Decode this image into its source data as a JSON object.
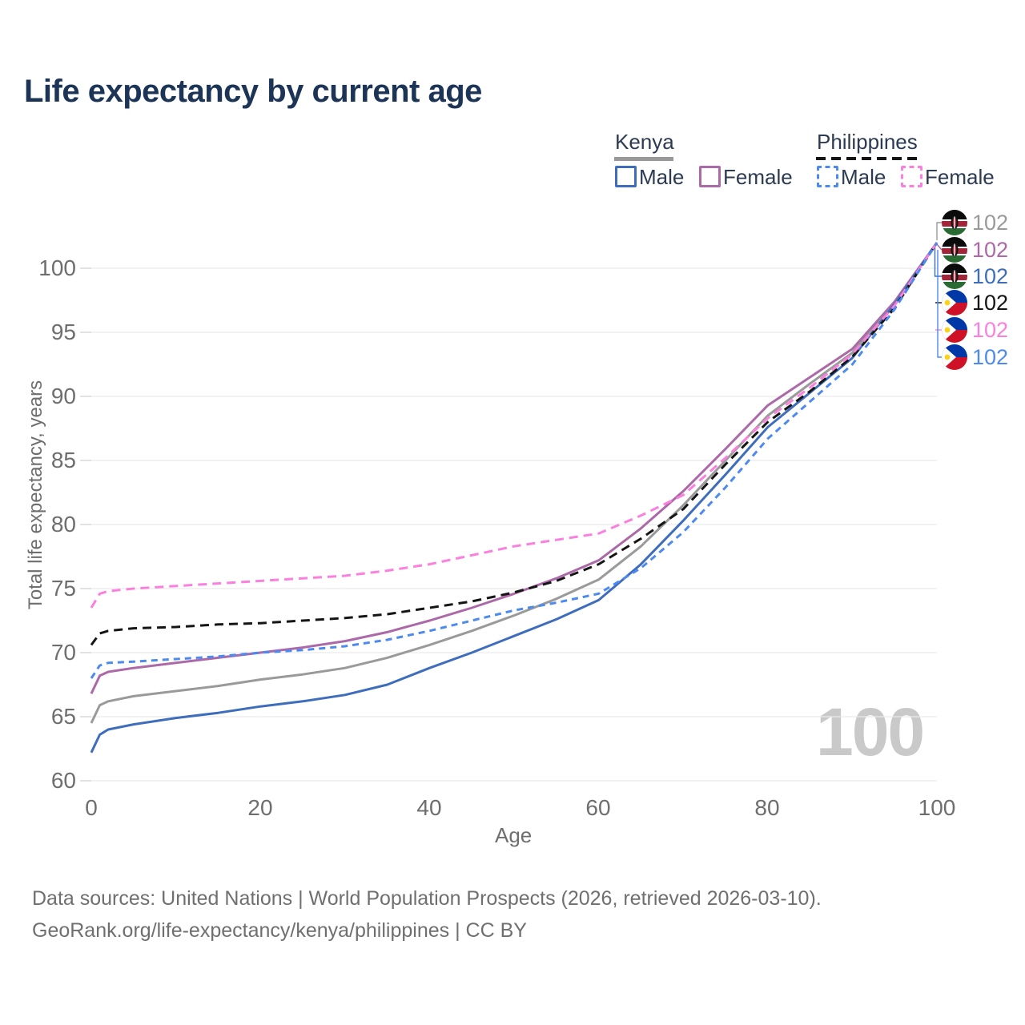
{
  "title": "Life expectancy by current age",
  "legend": {
    "groups": [
      {
        "label": "Kenya",
        "underline_color": "#999999",
        "underline_style": "solid",
        "items": [
          {
            "label": "Male",
            "color": "#3e6dbd",
            "dashed": false
          },
          {
            "label": "Female",
            "color": "#ac69a8",
            "dashed": false
          }
        ]
      },
      {
        "label": "Philippines",
        "underline_color": "#151515",
        "underline_style": "dashed",
        "items": [
          {
            "label": "Male",
            "color": "#4d8af0",
            "dashed": true
          },
          {
            "label": "Female",
            "color": "#fb80de",
            "dashed": true
          }
        ]
      }
    ]
  },
  "watermark": "100",
  "end_labels": {
    "rows": [
      {
        "flag": "kenya",
        "value": "102",
        "color": "#9a9a9a",
        "series": "Kenya All"
      },
      {
        "flag": "kenya",
        "value": "102",
        "color": "#ac69a8",
        "series": "Kenya Female"
      },
      {
        "flag": "kenya",
        "value": "102",
        "color": "#3e6dbd",
        "series": "Kenya Male"
      },
      {
        "flag": "philippines",
        "value": "102",
        "color": "#151515",
        "series": "Philippines All"
      },
      {
        "flag": "philippines",
        "value": "102",
        "color": "#fb80de",
        "series": "Philippines Female"
      },
      {
        "flag": "philippines",
        "value": "102",
        "color": "#4d8af0",
        "series": "Philippines Male"
      }
    ]
  },
  "footer": {
    "line1": "Data sources: United Nations | World Population Prospects (2026, retrieved 2026-03-10).",
    "line2": "GeoRank.org/life-expectancy/kenya/philippines | CC BY"
  },
  "chart_data": {
    "type": "line",
    "title": "Life expectancy by current age",
    "xlabel": "Age",
    "ylabel": "Total life expectancy, years",
    "xlim": [
      0,
      100
    ],
    "ylim": [
      60,
      102
    ],
    "xticks": [
      0,
      20,
      40,
      60,
      80,
      100
    ],
    "yticks": [
      60,
      65,
      70,
      75,
      80,
      85,
      90,
      95,
      100
    ],
    "grid": "horizontal",
    "legend_position": "top-right",
    "x": [
      0,
      1,
      2,
      5,
      10,
      15,
      20,
      25,
      30,
      35,
      40,
      45,
      50,
      55,
      60,
      65,
      70,
      75,
      80,
      85,
      90,
      95,
      100
    ],
    "series": [
      {
        "name": "Kenya All",
        "color": "#9a9a9a",
        "style": "solid",
        "dash": "",
        "values": [
          64.5,
          65.9,
          66.2,
          66.6,
          67.0,
          67.4,
          67.9,
          68.3,
          68.8,
          69.6,
          70.6,
          71.7,
          72.9,
          74.2,
          75.7,
          78.3,
          81.5,
          85.0,
          88.5,
          91.0,
          93.4,
          97.3,
          102
        ]
      },
      {
        "name": "Kenya Female",
        "color": "#ac69a8",
        "style": "solid",
        "dash": "",
        "values": [
          66.8,
          68.2,
          68.5,
          68.8,
          69.2,
          69.6,
          70.0,
          70.4,
          70.9,
          71.6,
          72.5,
          73.5,
          74.6,
          75.8,
          77.2,
          79.7,
          82.6,
          85.9,
          89.3,
          91.5,
          93.7,
          97.4,
          102
        ]
      },
      {
        "name": "Kenya Male",
        "color": "#3e6dbd",
        "style": "solid",
        "dash": "",
        "values": [
          62.2,
          63.6,
          64.0,
          64.4,
          64.9,
          65.3,
          65.8,
          66.2,
          66.7,
          67.5,
          68.8,
          70.0,
          71.3,
          72.6,
          74.1,
          76.9,
          80.3,
          83.9,
          87.6,
          90.3,
          93.0,
          97.2,
          102
        ]
      },
      {
        "name": "Philippines All",
        "color": "#151515",
        "style": "dashed",
        "dash": "11 7",
        "values": [
          70.6,
          71.5,
          71.7,
          71.9,
          72.0,
          72.2,
          72.3,
          72.5,
          72.7,
          73.0,
          73.5,
          74.0,
          74.7,
          75.6,
          76.9,
          78.9,
          81.2,
          84.7,
          88.0,
          90.4,
          93.1,
          96.9,
          102
        ]
      },
      {
        "name": "Philippines Female",
        "color": "#fb80de",
        "style": "dashed",
        "dash": "11 7",
        "values": [
          73.5,
          74.6,
          74.8,
          75.0,
          75.2,
          75.4,
          75.6,
          75.8,
          76.0,
          76.4,
          76.9,
          77.6,
          78.3,
          78.8,
          79.3,
          80.7,
          82.3,
          85.2,
          88.3,
          90.7,
          93.3,
          97.1,
          102
        ]
      },
      {
        "name": "Philippines Male",
        "color": "#4d8af0",
        "style": "dashed",
        "dash": "8 6",
        "values": [
          68.0,
          69.0,
          69.2,
          69.3,
          69.5,
          69.7,
          70.0,
          70.2,
          70.5,
          71.0,
          71.7,
          72.5,
          73.3,
          73.9,
          74.6,
          76.6,
          79.4,
          82.9,
          86.7,
          89.6,
          92.5,
          96.8,
          102
        ]
      }
    ]
  }
}
